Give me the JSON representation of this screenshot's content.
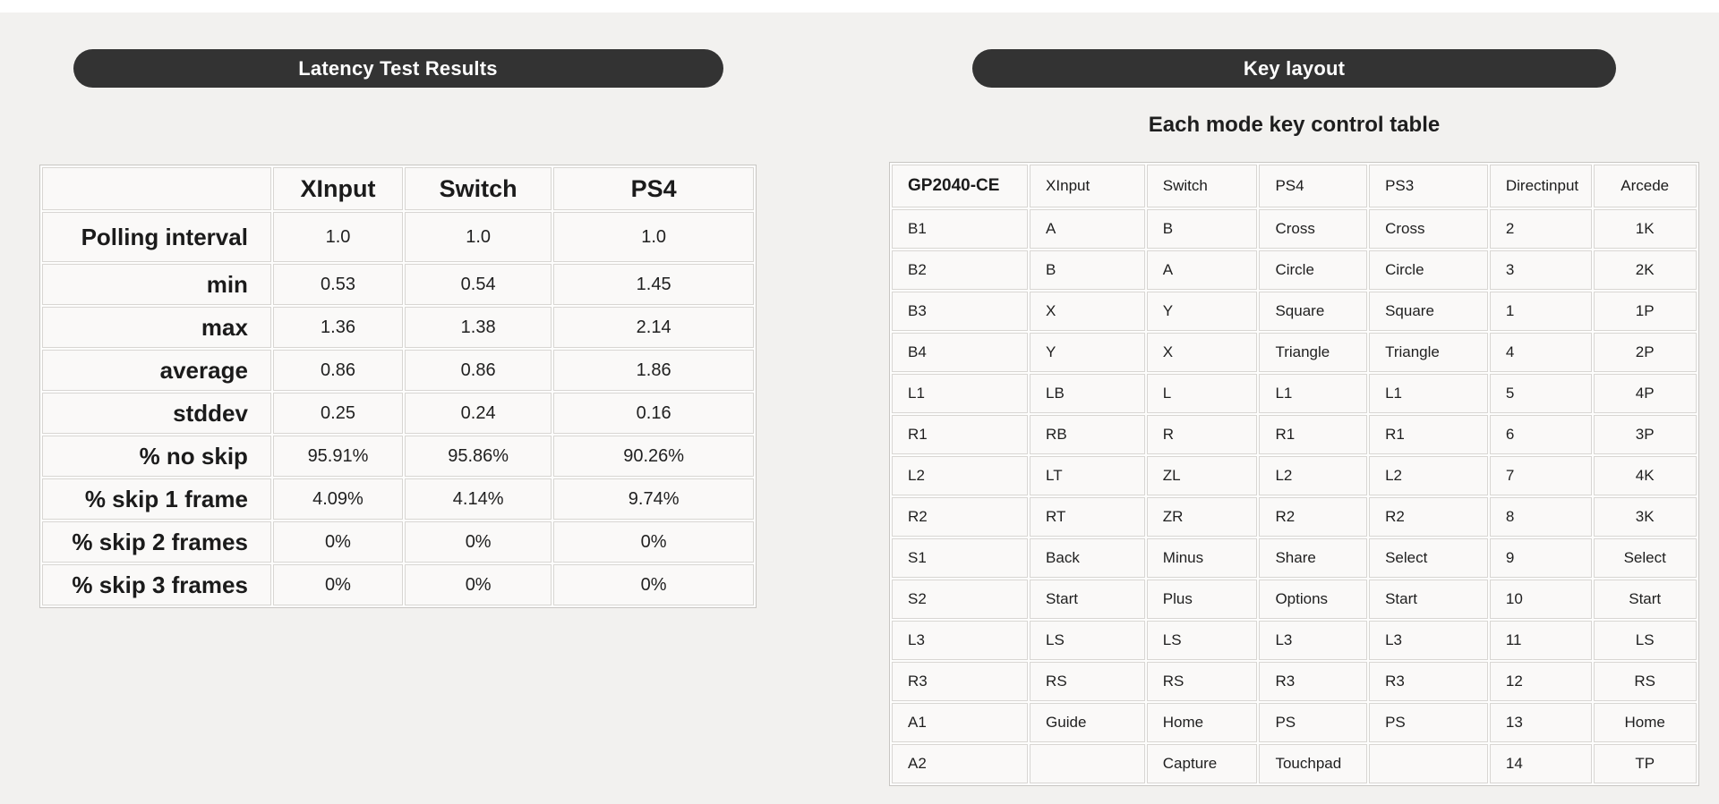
{
  "colors": {
    "page_bg": "#f2f1ef",
    "pill_bg": "#333333",
    "pill_text": "#ffffff",
    "cell_bg": "#faf9f8",
    "border": "#d8d6d3"
  },
  "latency_panel": {
    "header": "Latency Test Results",
    "table": {
      "columns": [
        "",
        "XInput",
        "Switch",
        "PS4"
      ],
      "rows": [
        {
          "label": "Polling interval",
          "values": [
            "1.0",
            "1.0",
            "1.0"
          ]
        },
        {
          "label": "min",
          "values": [
            "0.53",
            "0.54",
            "1.45"
          ]
        },
        {
          "label": "max",
          "values": [
            "1.36",
            "1.38",
            "2.14"
          ]
        },
        {
          "label": "average",
          "values": [
            "0.86",
            "0.86",
            "1.86"
          ]
        },
        {
          "label": "stddev",
          "values": [
            "0.25",
            "0.24",
            "0.16"
          ]
        },
        {
          "label": "% no skip",
          "values": [
            "95.91%",
            "95.86%",
            "90.26%"
          ]
        },
        {
          "label": "% skip 1 frame",
          "values": [
            "4.09%",
            "4.14%",
            "9.74%"
          ]
        },
        {
          "label": "% skip 2 frames",
          "values": [
            "0%",
            "0%",
            "0%"
          ]
        },
        {
          "label": "% skip 3 frames",
          "values": [
            "0%",
            "0%",
            "0%"
          ]
        }
      ]
    }
  },
  "key_layout_panel": {
    "header": "Key layout",
    "subtitle": "Each mode key control table",
    "table": {
      "columns": [
        "GP2040-CE",
        "XInput",
        "Switch",
        "PS4",
        "PS3",
        "Directinput",
        "Arcede"
      ],
      "rows": [
        {
          "cells": [
            "B1",
            "A",
            "B",
            "Cross",
            "Cross",
            "2",
            "1K"
          ]
        },
        {
          "cells": [
            "B2",
            "B",
            "A",
            "Circle",
            "Circle",
            "3",
            "2K"
          ]
        },
        {
          "cells": [
            "B3",
            "X",
            "Y",
            "Square",
            "Square",
            "1",
            "1P"
          ]
        },
        {
          "cells": [
            "B4",
            "Y",
            "X",
            "Triangle",
            "Triangle",
            "4",
            "2P"
          ]
        },
        {
          "cells": [
            "L1",
            "LB",
            "L",
            "L1",
            "L1",
            "5",
            "4P"
          ]
        },
        {
          "cells": [
            "R1",
            "RB",
            "R",
            "R1",
            "R1",
            "6",
            "3P"
          ]
        },
        {
          "cells": [
            "L2",
            "LT",
            "ZL",
            "L2",
            "L2",
            "7",
            "4K"
          ]
        },
        {
          "cells": [
            "R2",
            "RT",
            "ZR",
            "R2",
            "R2",
            "8",
            "3K"
          ]
        },
        {
          "cells": [
            "S1",
            "Back",
            "Minus",
            "Share",
            "Select",
            "9",
            "Select"
          ]
        },
        {
          "cells": [
            "S2",
            "Start",
            "Plus",
            "Options",
            "Start",
            "10",
            "Start"
          ]
        },
        {
          "cells": [
            "L3",
            "LS",
            "LS",
            "L3",
            "L3",
            "11",
            "LS"
          ]
        },
        {
          "cells": [
            "R3",
            "RS",
            "RS",
            "R3",
            "R3",
            "12",
            "RS"
          ]
        },
        {
          "cells": [
            "A1",
            "Guide",
            "Home",
            "PS",
            "PS",
            "13",
            "Home"
          ]
        },
        {
          "cells": [
            "A2",
            "",
            "Capture",
            "Touchpad",
            "",
            "14",
            "TP"
          ]
        }
      ]
    }
  }
}
